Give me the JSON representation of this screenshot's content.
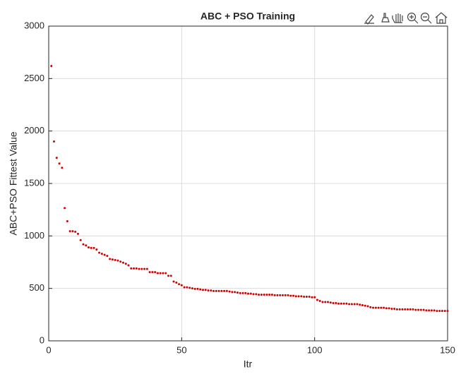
{
  "chart_data": {
    "type": "scatter",
    "title": "ABC + PSO Training",
    "xlabel": "Itr",
    "ylabel": "ABC+PSO Fittest Value",
    "color": "#d40000",
    "grid": true,
    "xlim": [
      0,
      150
    ],
    "xticks": [
      0,
      50,
      100,
      150
    ],
    "ylim": [
      0,
      3000
    ],
    "yticks": [
      0,
      500,
      1000,
      1500,
      2000,
      2500,
      3000
    ],
    "x": [
      1,
      2,
      3,
      4,
      5,
      6,
      7,
      8,
      9,
      10,
      11,
      12,
      13,
      14,
      15,
      16,
      17,
      18,
      19,
      20,
      21,
      22,
      23,
      24,
      25,
      26,
      27,
      28,
      29,
      30,
      31,
      32,
      33,
      34,
      35,
      36,
      37,
      38,
      39,
      40,
      41,
      42,
      43,
      44,
      45,
      46,
      47,
      48,
      49,
      50,
      51,
      52,
      53,
      54,
      55,
      56,
      57,
      58,
      59,
      60,
      61,
      62,
      63,
      64,
      65,
      66,
      67,
      68,
      69,
      70,
      71,
      72,
      73,
      74,
      75,
      76,
      77,
      78,
      79,
      80,
      81,
      82,
      83,
      84,
      85,
      86,
      87,
      88,
      89,
      90,
      91,
      92,
      93,
      94,
      95,
      96,
      97,
      98,
      99,
      100,
      101,
      102,
      103,
      104,
      105,
      106,
      107,
      108,
      109,
      110,
      111,
      112,
      113,
      114,
      115,
      116,
      117,
      118,
      119,
      120,
      121,
      122,
      123,
      124,
      125,
      126,
      127,
      128,
      129,
      130,
      131,
      132,
      133,
      134,
      135,
      136,
      137,
      138,
      139,
      140,
      141,
      142,
      143,
      144,
      145,
      146,
      147,
      148,
      149,
      150
    ],
    "values": [
      2620,
      1900,
      1745,
      1690,
      1650,
      1265,
      1140,
      1045,
      1045,
      1040,
      1020,
      960,
      920,
      910,
      890,
      885,
      885,
      870,
      840,
      830,
      820,
      810,
      780,
      775,
      770,
      765,
      755,
      745,
      735,
      720,
      690,
      690,
      690,
      685,
      685,
      685,
      685,
      655,
      655,
      655,
      645,
      645,
      645,
      645,
      620,
      620,
      565,
      555,
      540,
      530,
      510,
      510,
      505,
      500,
      495,
      495,
      490,
      485,
      485,
      480,
      480,
      475,
      475,
      475,
      475,
      475,
      475,
      470,
      465,
      465,
      460,
      455,
      455,
      455,
      450,
      450,
      445,
      445,
      440,
      440,
      440,
      440,
      440,
      440,
      435,
      435,
      435,
      435,
      435,
      435,
      430,
      430,
      425,
      425,
      425,
      420,
      420,
      420,
      415,
      415,
      390,
      380,
      370,
      370,
      370,
      365,
      360,
      360,
      355,
      355,
      355,
      355,
      350,
      350,
      350,
      350,
      345,
      340,
      335,
      330,
      320,
      315,
      315,
      315,
      315,
      315,
      310,
      310,
      305,
      305,
      300,
      300,
      300,
      300,
      300,
      300,
      300,
      295,
      295,
      295,
      295,
      290,
      290,
      290,
      290,
      285,
      285,
      285,
      285,
      285
    ]
  }
}
